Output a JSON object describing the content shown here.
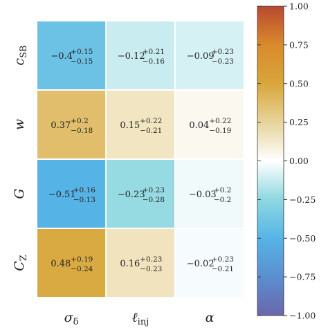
{
  "chart_data": {
    "type": "heatmap",
    "rows": [
      {
        "label": "c",
        "label_sub": "SB"
      },
      {
        "label": "w",
        "label_sub": ""
      },
      {
        "label": "G",
        "label_sub": ""
      },
      {
        "label": "C",
        "label_sub": "Z"
      }
    ],
    "columns": [
      {
        "label": "σ",
        "label_sub": "δ"
      },
      {
        "label": "ℓ",
        "label_sub": "inj"
      },
      {
        "label": "α",
        "label_sub": ""
      }
    ],
    "values": [
      [
        -0.4,
        -0.12,
        -0.09
      ],
      [
        0.37,
        0.15,
        0.04
      ],
      [
        -0.51,
        -0.23,
        -0.03
      ],
      [
        0.48,
        0.16,
        -0.02
      ]
    ],
    "cells": [
      [
        {
          "main": "−0.4",
          "upper": "+0.15",
          "lower": "−0.15"
        },
        {
          "main": "−0.12",
          "upper": "+0.21",
          "lower": "−0.16"
        },
        {
          "main": "−0.09",
          "upper": "+0.23",
          "lower": "−0.23"
        }
      ],
      [
        {
          "main": "0.37",
          "upper": "+0.2",
          "lower": "−0.18"
        },
        {
          "main": "0.15",
          "upper": "+0.22",
          "lower": "−0.21"
        },
        {
          "main": "0.04",
          "upper": "+0.22",
          "lower": "−0.19"
        }
      ],
      [
        {
          "main": "−0.51",
          "upper": "+0.16",
          "lower": "−0.13"
        },
        {
          "main": "−0.23",
          "upper": "+0.23",
          "lower": "−0.28"
        },
        {
          "main": "−0.03",
          "upper": "+0.2",
          "lower": "−0.2"
        }
      ],
      [
        {
          "main": "0.48",
          "upper": "+0.19",
          "lower": "−0.24"
        },
        {
          "main": "0.16",
          "upper": "+0.23",
          "lower": "−0.23"
        },
        {
          "main": "−0.02",
          "upper": "+0.23",
          "lower": "−0.21"
        }
      ]
    ],
    "colorbar": {
      "range": [
        -1,
        1
      ],
      "ticks": [
        1.0,
        0.75,
        0.5,
        0.25,
        0.0,
        -0.25,
        -0.5,
        -0.75,
        -1.0
      ],
      "tick_labels": [
        "1.00",
        "0.75",
        "0.50",
        "0.25",
        "0.00",
        "−0.25",
        "−0.50",
        "−0.75",
        "−1.00"
      ],
      "colormap": [
        {
          "v": -1.0,
          "color": "#6a67aa"
        },
        {
          "v": -0.75,
          "color": "#5a8fd0"
        },
        {
          "v": -0.5,
          "color": "#56b4e6"
        },
        {
          "v": -0.25,
          "color": "#8dd8e0"
        },
        {
          "v": 0.0,
          "color": "#ffffff"
        },
        {
          "v": 0.25,
          "color": "#e7d49a"
        },
        {
          "v": 0.5,
          "color": "#d8a63a"
        },
        {
          "v": 0.75,
          "color": "#d98a2c"
        },
        {
          "v": 1.0,
          "color": "#b8492f"
        }
      ]
    }
  }
}
